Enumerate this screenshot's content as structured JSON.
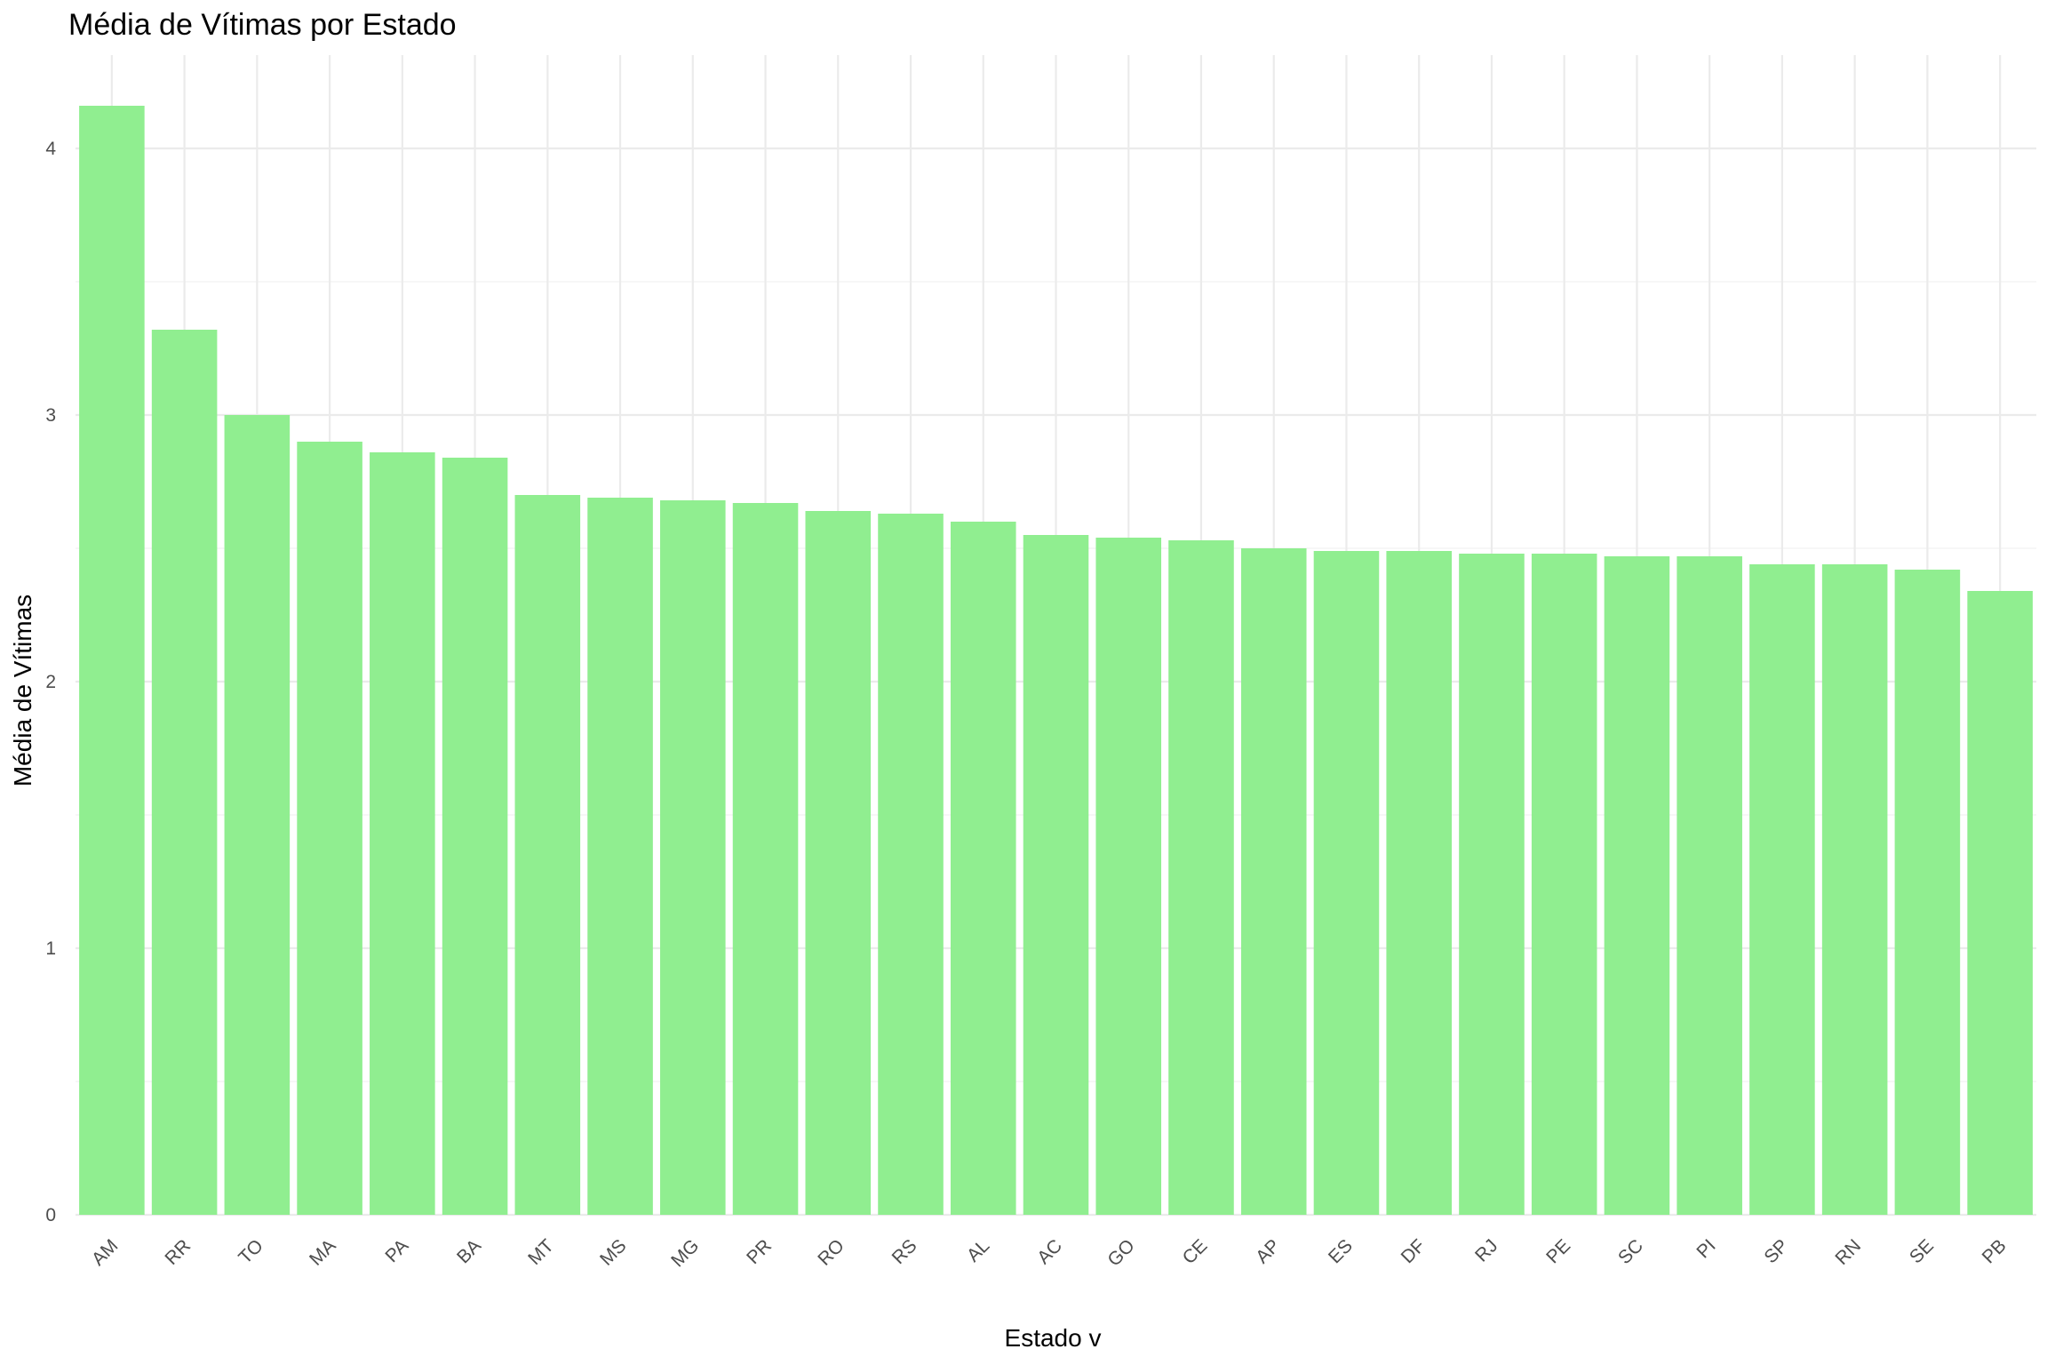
{
  "chart_data": {
    "type": "bar",
    "title": "Média de Vítimas por Estado",
    "xlabel": "Estado v",
    "ylabel": "Média de Vítimas",
    "categories": [
      "AM",
      "RR",
      "TO",
      "MA",
      "PA",
      "BA",
      "MT",
      "MS",
      "MG",
      "PR",
      "RO",
      "RS",
      "AL",
      "AC",
      "GO",
      "CE",
      "AP",
      "ES",
      "DF",
      "RJ",
      "PE",
      "SC",
      "PI",
      "SP",
      "RN",
      "SE",
      "PB"
    ],
    "values": [
      4.16,
      3.32,
      3.0,
      2.9,
      2.86,
      2.84,
      2.7,
      2.69,
      2.68,
      2.67,
      2.64,
      2.63,
      2.6,
      2.55,
      2.54,
      2.53,
      2.5,
      2.49,
      2.49,
      2.48,
      2.48,
      2.47,
      2.47,
      2.44,
      2.44,
      2.42,
      2.34
    ],
    "ylim": [
      0,
      4.35
    ],
    "yticks": [
      "0",
      "1",
      "2",
      "3",
      "4"
    ],
    "bar_color": "#90ee90",
    "grid": true,
    "x_tick_rotation": "45 degrees"
  }
}
